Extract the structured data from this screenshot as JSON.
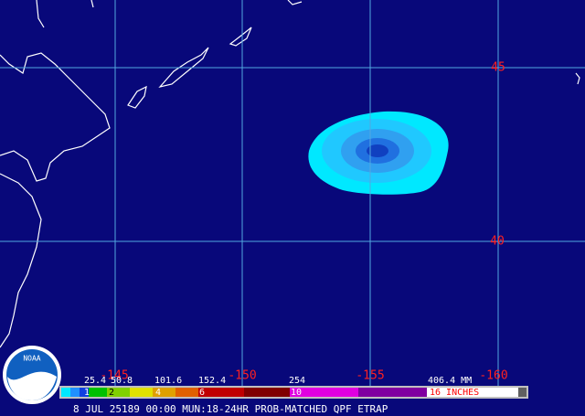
{
  "map": {
    "latitude_labels": [
      "45",
      "40"
    ],
    "longitude_labels": [
      "-145",
      "-150",
      "-155",
      "-160"
    ],
    "logo": "NOAA",
    "legend": {
      "mm_labels": [
        "25.4",
        "50.8",
        "101.6",
        "152.4",
        "254",
        "406.4 MM"
      ],
      "inch_labels": [
        "1",
        "2",
        "4",
        "6",
        "10",
        "16 INCHES"
      ]
    },
    "footer": "8 JUL 25189 00:00 MUN:18-24HR PROB-MATCHED QPF ETRAP"
  }
}
